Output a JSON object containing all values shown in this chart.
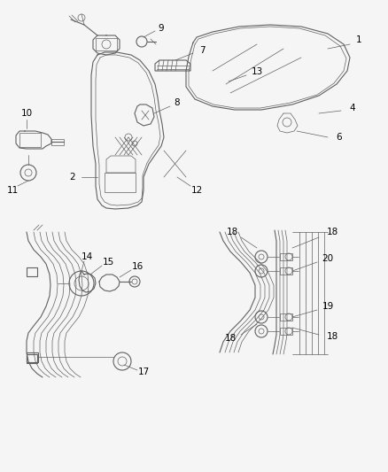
{
  "background_color": "#f5f5f5",
  "line_color": "#606060",
  "label_color": "#000000",
  "figsize": [
    4.38,
    5.33
  ],
  "dpi": 100,
  "font_size": 7.5
}
